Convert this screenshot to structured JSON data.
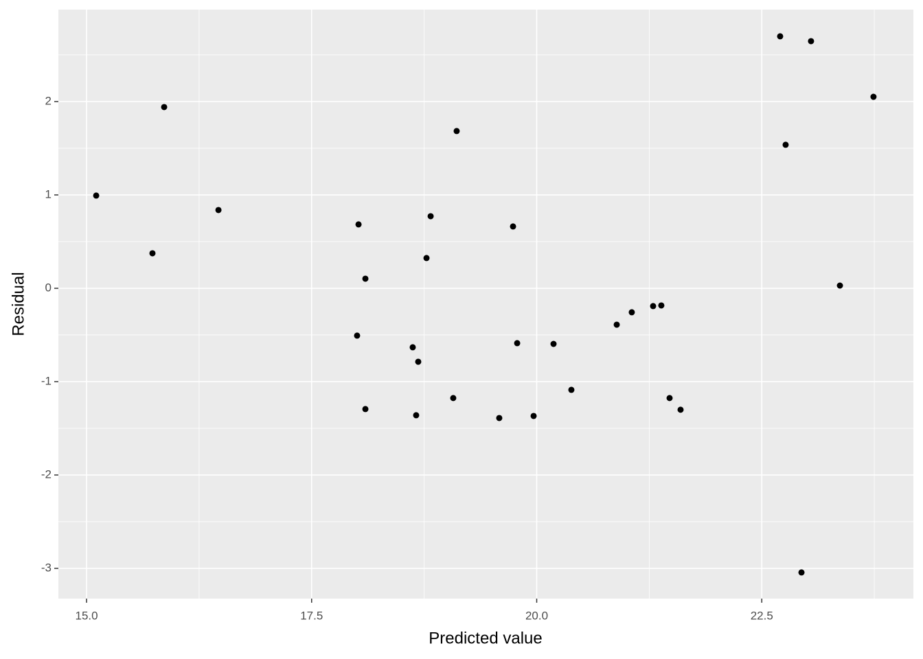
{
  "chart_data": {
    "type": "scatter",
    "x_label": "Predicted value",
    "y_label": "Residual",
    "xlim": [
      14.687,
      24.184
    ],
    "ylim": [
      -3.324,
      2.985
    ],
    "xticks": [
      {
        "value": 15,
        "label": "15.0"
      },
      {
        "value": 17.5,
        "label": "17.5"
      },
      {
        "value": 20,
        "label": "20.0"
      },
      {
        "value": 22.5,
        "label": "22.5"
      }
    ],
    "yticks": [
      2,
      1,
      0,
      -1,
      -2,
      -3
    ],
    "grid": true,
    "color": "#000000",
    "panel_color": "#ebebeb",
    "x": [
      15.107,
      15.862,
      15.732,
      16.465,
      18.021,
      18.097,
      18.005,
      18.097,
      18.623,
      18.684,
      18.661,
      18.776,
      18.822,
      19.111,
      19.073,
      19.584,
      19.737,
      19.783,
      19.966,
      20.187,
      20.385,
      20.889,
      21.056,
      21.293,
      21.384,
      21.476,
      21.598,
      22.704,
      22.765,
      23.047,
      22.941,
      23.368,
      23.741
    ],
    "values": [
      0.993,
      1.941,
      0.375,
      0.838,
      0.684,
      0.103,
      -0.507,
      -1.294,
      -0.632,
      -0.787,
      -1.36,
      0.324,
      0.772,
      1.684,
      -1.176,
      -1.39,
      0.662,
      -0.588,
      -1.368,
      -0.596,
      -1.088,
      -0.39,
      -0.257,
      -0.191,
      -0.184,
      -1.176,
      -1.301,
      2.699,
      1.537,
      2.647,
      -3.044,
      0.029,
      2.051
    ]
  }
}
